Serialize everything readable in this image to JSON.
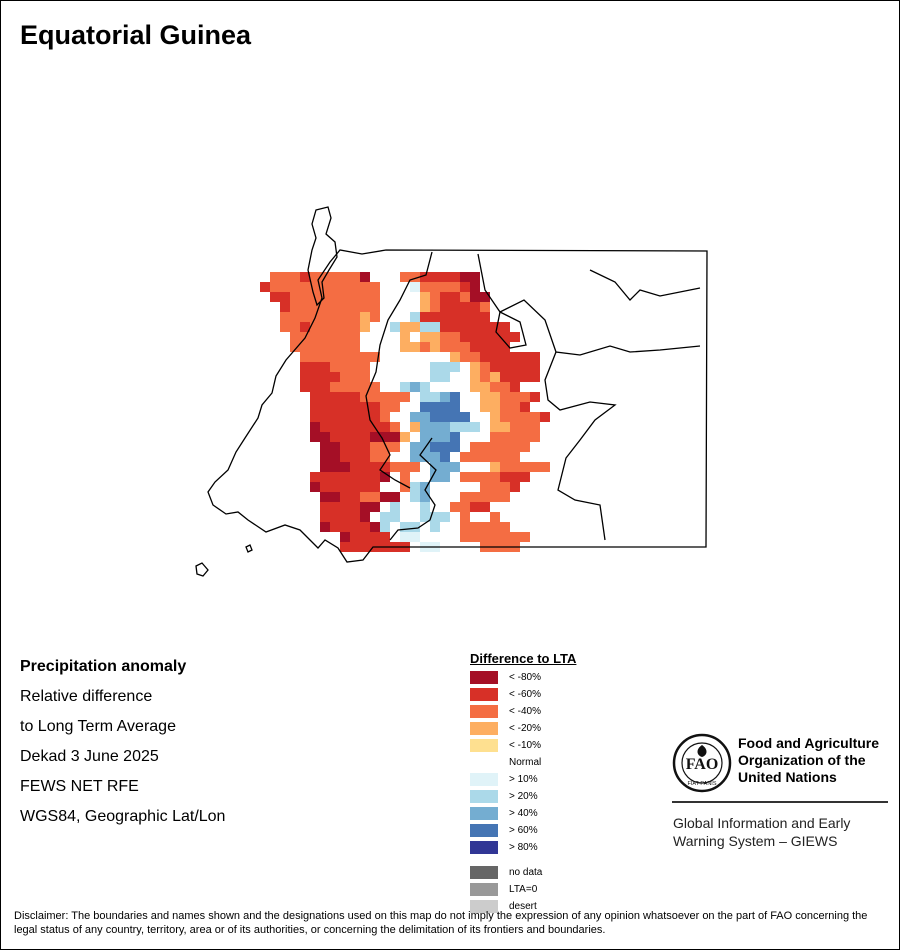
{
  "header": {
    "title": "Equatorial Guinea"
  },
  "info": {
    "lines": [
      "Precipitation anomaly",
      "Relative difference",
      "to Long Term Average",
      "Dekad 3 June 2025",
      "FEWS NET RFE",
      "WGS84, Geographic Lat/Lon"
    ]
  },
  "legend": {
    "title": "Difference to LTA",
    "items": [
      {
        "label": "< -80%",
        "color": "#a50f26"
      },
      {
        "label": "< -60%",
        "color": "#d73027"
      },
      {
        "label": "< -40%",
        "color": "#f46d43"
      },
      {
        "label": "< -20%",
        "color": "#fdae61"
      },
      {
        "label": "< -10%",
        "color": "#fee090"
      },
      {
        "label": "Normal",
        "color": "#ffffff"
      },
      {
        "label": "> 10%",
        "color": "#e0f3f8"
      },
      {
        "label": "> 20%",
        "color": "#abd9e9"
      },
      {
        "label": "> 40%",
        "color": "#74add1"
      },
      {
        "label": "> 60%",
        "color": "#4575b4"
      },
      {
        "label": "> 80%",
        "color": "#313695"
      }
    ],
    "extras": [
      {
        "label": "no data",
        "color": "#666666"
      },
      {
        "label": "LTA=0",
        "color": "#999999"
      },
      {
        "label": "desert",
        "color": "#cccccc"
      }
    ]
  },
  "branding": {
    "fao_name": [
      "Food and Agriculture",
      "Organization of the",
      "United Nations"
    ],
    "giews": [
      "Global Information and Early",
      "Warning System – GIEWS"
    ]
  },
  "disclaimer": "Disclaimer: The boundaries and names shown and the designations used on this map do not imply the expression of any opinion whatsoever on the part of FAO concerning the legal status of any country, territory, area or of its authorities, or concerning the delimitation of its frontiers and boundaries.",
  "map": {
    "grid": [
      "......................",
      "......................",
      "......................",
      ".........................",
      ".......3332333331W..33222211",
      "......233333333333WWW6333321",
      ".......22333333333WWWW4322311",
      "........2333333333WWWW4322223",
      "........3333333343WWW72222222",
      "........332333334WW744772222222",
      ".........3333333WWWW4W4433222222",
      ".........3333333WWWW44343332222",
      "..........33333333WWWWWWW433222222",
      "..........2223333WWWWWW777W4322222",
      "..........2222333WWWWWW77WW4342222",
      "..........22233333WW787WWWW44332",
      "...........2222233333W7789WW443332",
      "...........222222233WW9999WW44332",
      "...........22222223WW889999WW433332",
      "...........122222223W4888777W44333",
      "...........1122221114W8889WWW33333",
      "............11222333W88999W333333",
      "............1122233WW8889W333333",
      "............1112222333W888WWW433333",
      "...........22222221W3WW88W3333222",
      "...........1222222WW378WWWWW3332",
      "............11223311W78WWW33333",
      "............222211W7WW7WW3322",
      "............22221W77WW777W3WW3",
      "............1222217W77W7WW33333",
      "..............12222W66WWWW3333333",
      "..............2222222W66WWWW3333"
    ]
  }
}
